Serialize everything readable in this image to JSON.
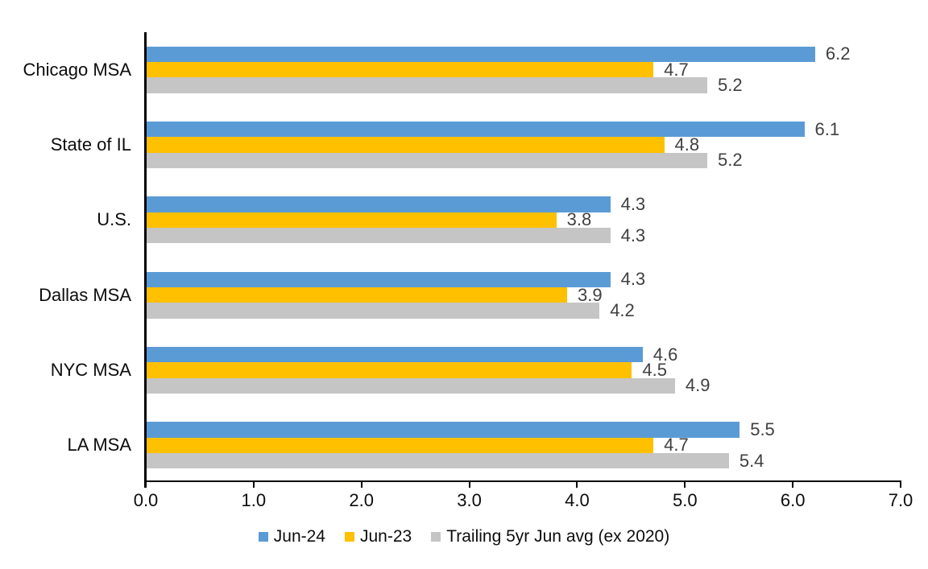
{
  "chart_data": {
    "type": "bar",
    "orientation": "horizontal",
    "title": "",
    "xlabel": "",
    "ylabel": "",
    "categories": [
      "Chicago MSA",
      "State of IL",
      "U.S.",
      "Dallas MSA",
      "NYC MSA",
      "LA MSA"
    ],
    "series": [
      {
        "name": "Jun-24",
        "color": "#5B9BD5",
        "values": [
          6.2,
          6.1,
          4.3,
          4.3,
          4.6,
          5.5
        ]
      },
      {
        "name": "Jun-23",
        "color": "#FFC000",
        "values": [
          4.7,
          4.8,
          3.8,
          3.9,
          4.5,
          4.7
        ]
      },
      {
        "name": "Trailing 5yr Jun avg (ex 2020)",
        "color": "#C5C5C5",
        "values": [
          5.2,
          5.2,
          4.3,
          4.2,
          4.9,
          5.4
        ]
      }
    ],
    "xlim": [
      0,
      7
    ],
    "xticks": [
      "0.0",
      "1.0",
      "2.0",
      "3.0",
      "4.0",
      "5.0",
      "6.0",
      "7.0"
    ],
    "grid": false,
    "legend_position": "bottom",
    "value_labels": true
  },
  "colors": {
    "axis": "#000000",
    "tick_label": "#0d0d0d",
    "category_label": "#0d0d0d",
    "value_label": "#404040",
    "background": "#ffffff"
  }
}
